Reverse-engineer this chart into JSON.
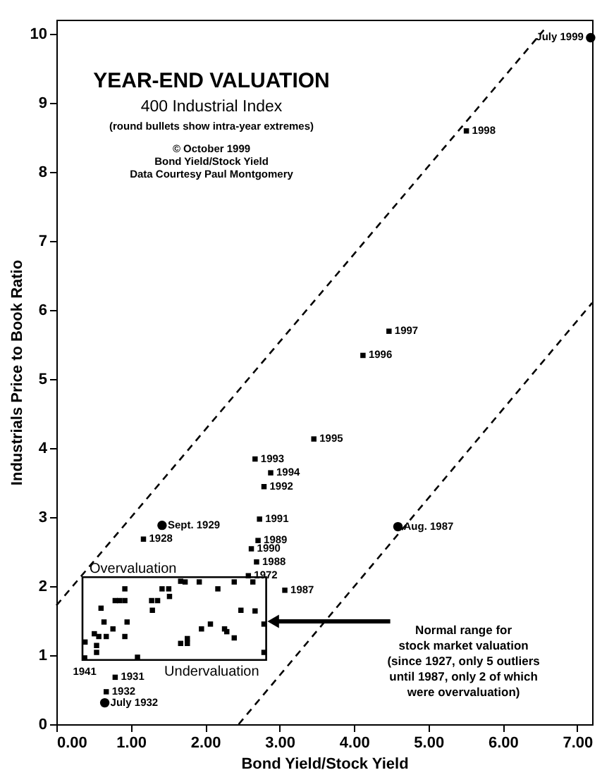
{
  "chart_data": {
    "type": "scatter",
    "title": "YEAR-END VALUATION",
    "subtitle": "400 Industrial Index",
    "xlabel": "Bond Yield/Stock Yield",
    "ylabel": "Industrials Price to Book Ratio",
    "xlim": [
      0,
      7.2
    ],
    "ylim": [
      0,
      10.2
    ],
    "xticks": [
      {
        "value": 0,
        "label": "0.00"
      },
      {
        "value": 1,
        "label": "1.00"
      },
      {
        "value": 2,
        "label": "2.00"
      },
      {
        "value": 3,
        "label": "3.00"
      },
      {
        "value": 4,
        "label": "4.00"
      },
      {
        "value": 5,
        "label": "5.00"
      },
      {
        "value": 6,
        "label": "6.00"
      },
      {
        "value": 7,
        "label": "7.00"
      }
    ],
    "yticks": [
      0,
      1,
      2,
      3,
      4,
      5,
      6,
      7,
      8,
      9,
      10
    ],
    "grid": false,
    "series": [
      {
        "color": "#000000",
        "marker": "square",
        "x": [
          5.51,
          4.47,
          4.12,
          3.46,
          2.67,
          2.88,
          2.79,
          1.17,
          2.73,
          2.71,
          2.62,
          2.69,
          2.58,
          3.07,
          0.38,
          0.79,
          0.67,
          0.51,
          0.54,
          0.57,
          0.54,
          0.6,
          0.67,
          0.64,
          0.76,
          0.79,
          0.85,
          0.92,
          0.92,
          0.95,
          0.92,
          1.09,
          1.28,
          1.29,
          1.36,
          1.42,
          1.51,
          1.52,
          1.67,
          1.73,
          1.67,
          1.76,
          1.76,
          1.95,
          2.07,
          2.17,
          2.26,
          2.29,
          2.39,
          2.39,
          2.48,
          2.64,
          2.67,
          2.79,
          2.79,
          1.92,
          0.385
        ],
        "values": [
          8.59,
          5.69,
          5.34,
          4.13,
          3.84,
          3.64,
          3.44,
          2.68,
          2.97,
          2.66,
          2.54,
          2.35,
          2.15,
          1.94,
          0.96,
          0.68,
          0.47,
          1.31,
          1.14,
          1.27,
          1.04,
          1.68,
          1.27,
          1.48,
          1.38,
          1.79,
          1.79,
          1.96,
          1.79,
          1.48,
          1.27,
          0.97,
          1.79,
          1.65,
          1.79,
          1.96,
          1.96,
          1.85,
          2.07,
          2.06,
          1.17,
          1.24,
          1.17,
          1.38,
          1.45,
          1.96,
          1.38,
          1.34,
          1.25,
          2.06,
          1.65,
          2.06,
          1.64,
          1.45,
          1.04,
          2.06,
          1.19
        ]
      },
      {
        "color": "#000000",
        "marker": "circle",
        "x": [
          7.18,
          1.42,
          0.65,
          4.59
        ],
        "values": [
          9.94,
          2.88,
          0.31,
          2.86
        ]
      },
      {
        "type": "line",
        "color": "#000000",
        "line_style": "dashed",
        "x": [
          0,
          6.55
        ],
        "values": [
          1.72,
          10.05
        ]
      },
      {
        "type": "line",
        "color": "#000000",
        "line_style": "dashed",
        "x": [
          2.45,
          7.2
        ],
        "values": [
          0,
          6.1
        ]
      }
    ],
    "annotations": [
      "(round bullets show intra-year extremes)",
      "© October 1999",
      "Bond Yield/Stock Yield",
      "Data Courtesy Paul Montgomery",
      {
        "text": "1998",
        "x": 5.51,
        "y": 8.59
      },
      {
        "text": "1997",
        "x": 4.47,
        "y": 5.69
      },
      {
        "text": "1996",
        "x": 4.12,
        "y": 5.34
      },
      {
        "text": "1995",
        "x": 3.46,
        "y": 4.13
      },
      {
        "text": "1993",
        "x": 2.67,
        "y": 3.84
      },
      {
        "text": "1994",
        "x": 2.88,
        "y": 3.64
      },
      {
        "text": "1992",
        "x": 2.79,
        "y": 3.44
      },
      {
        "text": "1928",
        "x": 1.17,
        "y": 2.68
      },
      {
        "text": "1991",
        "x": 2.73,
        "y": 2.97
      },
      {
        "text": "1989",
        "x": 2.71,
        "y": 2.66
      },
      {
        "text": "1990",
        "x": 2.62,
        "y": 2.54
      },
      {
        "text": "1988",
        "x": 2.69,
        "y": 2.35
      },
      {
        "text": "1972",
        "x": 2.58,
        "y": 2.15
      },
      {
        "text": "1987",
        "x": 3.07,
        "y": 1.94
      },
      {
        "text": "1941",
        "x": 0.38,
        "y": 0.96
      },
      {
        "text": "1931",
        "x": 0.79,
        "y": 0.68
      },
      {
        "text": "1932",
        "x": 0.67,
        "y": 0.47
      },
      {
        "text": "July 1999",
        "x": 7.18,
        "y": 9.94
      },
      {
        "text": "Sept. 1929",
        "x": 1.42,
        "y": 2.88
      },
      {
        "text": "July 1932",
        "x": 0.65,
        "y": 0.31
      },
      {
        "text": "Aug. 1987",
        "x": 4.59,
        "y": 2.86
      },
      "Overvaluation",
      "Undervaluation",
      "Normal range for\nstock market valuation\n(since 1927, only 5 outliers\nuntil 1987, only 2 of which\nwere overvaluation)"
    ]
  }
}
